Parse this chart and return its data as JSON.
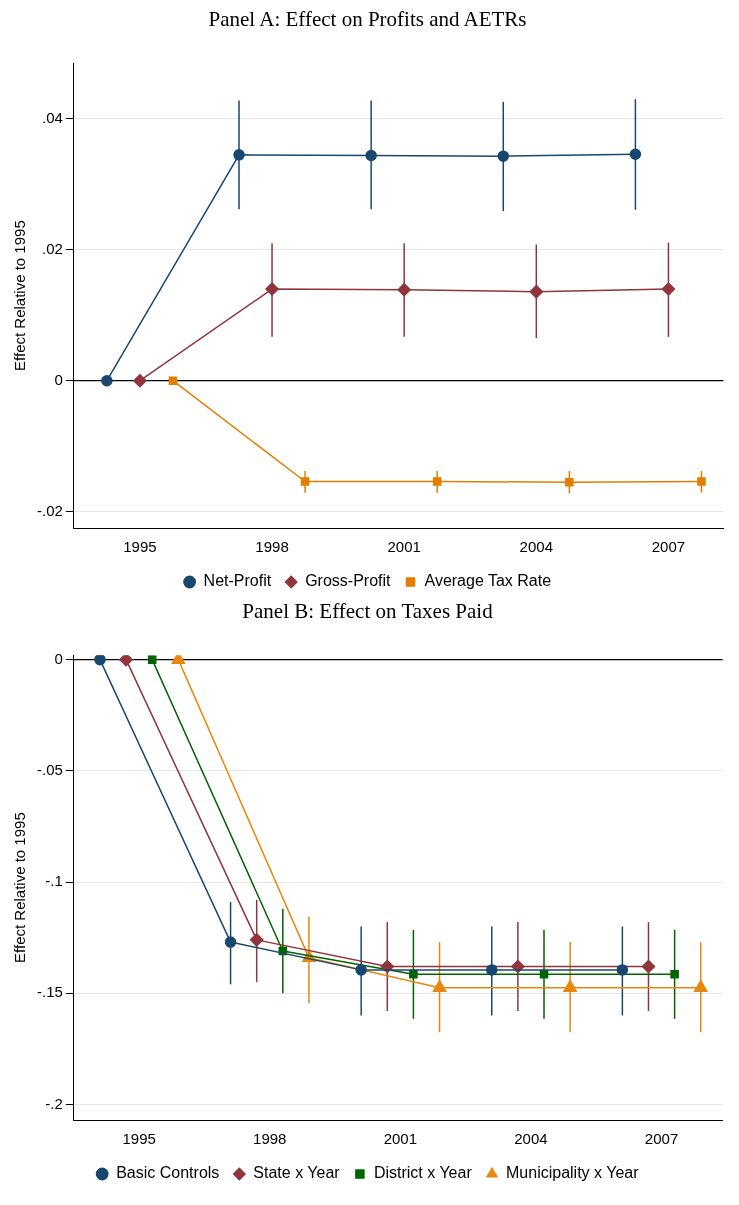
{
  "chart_data": [
    {
      "type": "line",
      "title": "Panel A: Effect on Profits and AETRs",
      "ylabel": "Effect Relative to 1995",
      "xlim": [
        1993.5,
        2008.25
      ],
      "xticks": [
        1995,
        1998,
        2001,
        2004,
        2007
      ],
      "ylim": [
        -0.0225,
        0.0485
      ],
      "yticks": [
        {
          "value": -0.02,
          "label": "-.02"
        },
        0,
        {
          "value": 0.02,
          "label": ".02"
        },
        {
          "value": 0.04,
          "label": ".04"
        }
      ],
      "grid": "y",
      "legend": "bottom",
      "ref_lines": [
        {
          "axis": "y",
          "value": 0,
          "color": "#000000"
        }
      ],
      "series": [
        {
          "name": "Net-Profit",
          "color": "#1a476f",
          "marker": "circle",
          "x": [
            1994.25,
            1997.25,
            2000.25,
            2003.25,
            2006.25
          ],
          "values": [
            0,
            0.0345,
            0.0344,
            0.0343,
            0.0346
          ],
          "errors": [
            null,
            [
              0.0262,
              0.0428
            ],
            [
              0.0262,
              0.0428
            ],
            [
              0.0259,
              0.0426
            ],
            [
              0.0261,
              0.043
            ]
          ]
        },
        {
          "name": "Gross-Profit",
          "color": "#90353b",
          "marker": "diamond",
          "x": [
            1995,
            1998,
            2001,
            2004,
            2007
          ],
          "values": [
            0,
            0.014,
            0.0139,
            0.0136,
            0.014
          ],
          "errors": [
            null,
            [
              0.0067,
              0.021
            ],
            [
              0.0067,
              0.021
            ],
            [
              0.0065,
              0.0208
            ],
            [
              0.0067,
              0.0211
            ]
          ]
        },
        {
          "name": "Average Tax Rate",
          "color": "#e37e00",
          "marker": "square",
          "x": [
            1995.75,
            1998.75,
            2001.75,
            2004.75,
            2007.75
          ],
          "values": [
            0,
            -0.0154,
            -0.0154,
            -0.0155,
            -0.0154
          ],
          "errors": [
            null,
            [
              -0.0171,
              -0.0138
            ],
            [
              -0.0171,
              -0.0138
            ],
            [
              -0.0172,
              -0.0138
            ],
            [
              -0.0171,
              -0.0138
            ]
          ]
        }
      ]
    },
    {
      "type": "line",
      "title": "Panel B: Effect on Taxes Paid",
      "ylabel": "Effect Relative to 1995",
      "xlim": [
        1993.5,
        2008.4
      ],
      "xticks": [
        1995,
        1998,
        2001,
        2004,
        2007
      ],
      "ylim": [
        -0.207,
        0.002
      ],
      "yticks": [
        {
          "value": -0.2,
          "label": "-.2"
        },
        {
          "value": -0.15,
          "label": "-.15"
        },
        {
          "value": -0.1,
          "label": "-.1"
        },
        {
          "value": -0.05,
          "label": "-.05"
        },
        0
      ],
      "grid": "y",
      "legend": "bottom",
      "ref_lines": [
        {
          "axis": "y",
          "value": 0,
          "color": "#000000"
        }
      ],
      "series": [
        {
          "name": "Basic Controls",
          "color": "#1a476f",
          "marker": "circle",
          "x": [
            1994.1,
            1997.1,
            2000.1,
            2003.1,
            2006.1
          ],
          "values": [
            0,
            -0.127,
            -0.1395,
            -0.1395,
            -0.1395
          ],
          "errors": [
            null,
            [
              -0.146,
              -0.109
            ],
            [
              -0.16,
              -0.12
            ],
            [
              -0.16,
              -0.12
            ],
            [
              -0.16,
              -0.12
            ]
          ]
        },
        {
          "name": "State x Year",
          "color": "#90353b",
          "marker": "diamond",
          "x": [
            1994.7,
            1997.7,
            2000.7,
            2003.7,
            2006.7
          ],
          "values": [
            0,
            -0.126,
            -0.138,
            -0.138,
            -0.138
          ],
          "errors": [
            null,
            [
              -0.145,
              -0.108
            ],
            [
              -0.158,
              -0.118
            ],
            [
              -0.158,
              -0.118
            ],
            [
              -0.158,
              -0.118
            ]
          ]
        },
        {
          "name": "District x Year",
          "color": "#006400",
          "marker": "square",
          "x": [
            1995.3,
            1998.3,
            2001.3,
            2004.3,
            2007.3
          ],
          "values": [
            0,
            -0.131,
            -0.1415,
            -0.1415,
            -0.1415
          ],
          "errors": [
            null,
            [
              -0.15,
              -0.112
            ],
            [
              -0.1615,
              -0.1215
            ],
            [
              -0.1615,
              -0.1215
            ],
            [
              -0.1615,
              -0.1215
            ]
          ]
        },
        {
          "name": "Municipality x Year",
          "color": "#e8870e",
          "marker": "triangle",
          "x": [
            1995.9,
            1998.9,
            2001.9,
            2004.9,
            2007.9
          ],
          "values": [
            0,
            -0.134,
            -0.1475,
            -0.1475,
            -0.1475
          ],
          "errors": [
            null,
            [
              -0.1545,
              -0.1155
            ],
            [
              -0.1675,
              -0.127
            ],
            [
              -0.1675,
              -0.127
            ],
            [
              -0.1675,
              -0.127
            ]
          ]
        }
      ]
    }
  ]
}
